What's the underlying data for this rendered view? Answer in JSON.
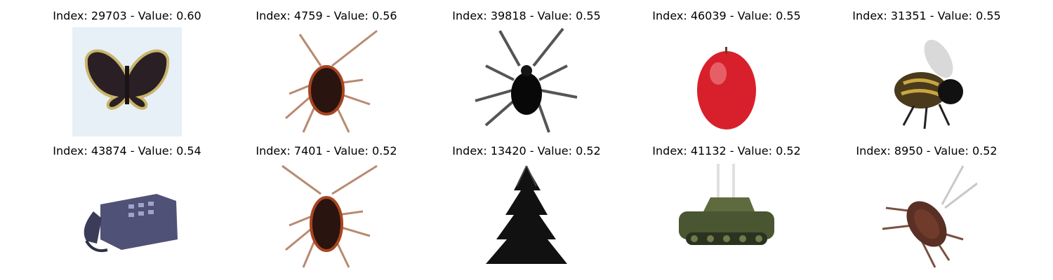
{
  "panels": [
    {
      "title": "Index: 29703 - Value: 0.60",
      "subject": "butterfly-image",
      "bg": "#e8f1f7"
    },
    {
      "title": "Index: 4759 - Value: 0.56",
      "subject": "cockroach-image",
      "bg": "#ffffff"
    },
    {
      "title": "Index: 39818 - Value: 0.55",
      "subject": "beetle-image",
      "bg": "#ffffff"
    },
    {
      "title": "Index: 46039 - Value: 0.55",
      "subject": "apple-image",
      "bg": "#ffffff"
    },
    {
      "title": "Index: 31351 - Value: 0.55",
      "subject": "bee-image",
      "bg": "#ffffff"
    },
    {
      "title": "Index: 43874 - Value: 0.54",
      "subject": "telephone-image",
      "bg": "#ffffff"
    },
    {
      "title": "Index: 7401 - Value: 0.52",
      "subject": "cockroach-image",
      "bg": "#ffffff"
    },
    {
      "title": "Index: 13420 - Value: 0.52",
      "subject": "tree-image",
      "bg": "#ffffff"
    },
    {
      "title": "Index: 41132 - Value: 0.52",
      "subject": "tank-image",
      "bg": "#ffffff"
    },
    {
      "title": "Index: 8950 - Value: 0.52",
      "subject": "cockroach-image",
      "bg": "#ffffff"
    }
  ]
}
